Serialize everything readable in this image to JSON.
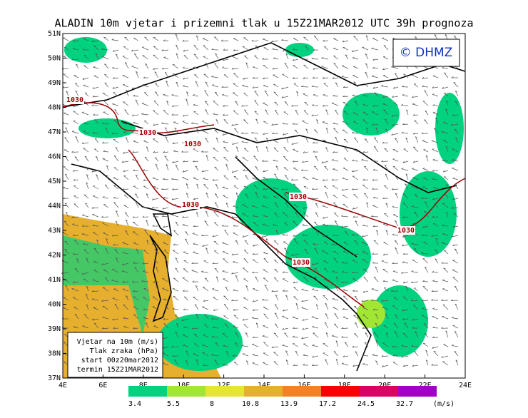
{
  "title": "ALADIN 10m vjetar i prizemni tlak u 15Z21MAR2012 UTC 39h prognoza",
  "copyright": "© DHMZ",
  "lat_labels": [
    "37N",
    "38N",
    "39N",
    "40N",
    "41N",
    "42N",
    "43N",
    "44N",
    "45N",
    "46N",
    "47N",
    "48N",
    "49N",
    "50N",
    "51N"
  ],
  "lon_labels": [
    "4E",
    "6E",
    "8E",
    "10E",
    "12E",
    "14E",
    "16E",
    "18E",
    "20E",
    "22E",
    "24E"
  ],
  "isobar_labels": [
    "1030",
    "1030",
    "1030",
    "1030",
    "1030",
    "1030",
    "1030"
  ],
  "legend_box": [
    "Vjetar na 10m (m/s)",
    "Tlak zraka (hPa)",
    "start 00z20mar2012",
    "termin 15Z21MAR2012"
  ],
  "colorbar": {
    "bounds": [
      3.4,
      5.5,
      8,
      10.8,
      13.9,
      17.2,
      24.5,
      32.7
    ],
    "colors": [
      "#00d27f",
      "#a0e632",
      "#e6e632",
      "#e6af2d",
      "#f08228",
      "#fa0000",
      "#dc0064",
      "#a000c8"
    ],
    "unit": "(m/s)"
  }
}
